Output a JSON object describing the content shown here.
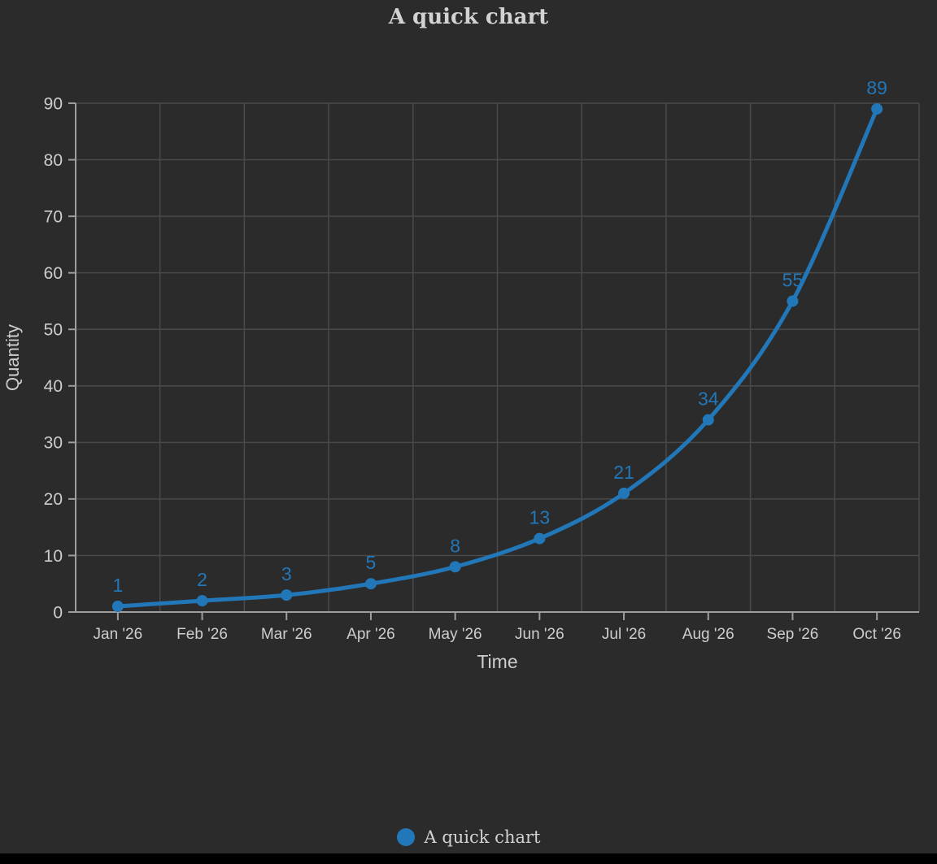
{
  "title": "A quick chart",
  "legend": {
    "label": "A quick chart"
  },
  "colors": {
    "background": "#2b2b2b",
    "bottom_bar": "#000000",
    "accent": "#2277b8",
    "text": "#cdcdcd",
    "grid": "#4a4a4a",
    "axis": "#9e9e9e"
  },
  "chart_data": {
    "type": "line",
    "title": "A quick chart",
    "x": [
      "Jan '26",
      "Feb '26",
      "Mar '26",
      "Apr '26",
      "May '26",
      "Jun '26",
      "Jul '26",
      "Aug '26",
      "Sep '26",
      "Oct '26"
    ],
    "series": [
      {
        "name": "A quick chart",
        "values": [
          1,
          2,
          3,
          5,
          8,
          13,
          21,
          34,
          55,
          89
        ],
        "color": "#2277b8"
      }
    ],
    "xlabel": "Time",
    "ylabel": "Quantity",
    "ylim": [
      0,
      90
    ],
    "yticks": [
      0,
      10,
      20,
      30,
      40,
      50,
      60,
      70,
      80,
      90
    ],
    "grid": true,
    "legend_position": "bottom",
    "point_labels": true,
    "smooth": true
  }
}
